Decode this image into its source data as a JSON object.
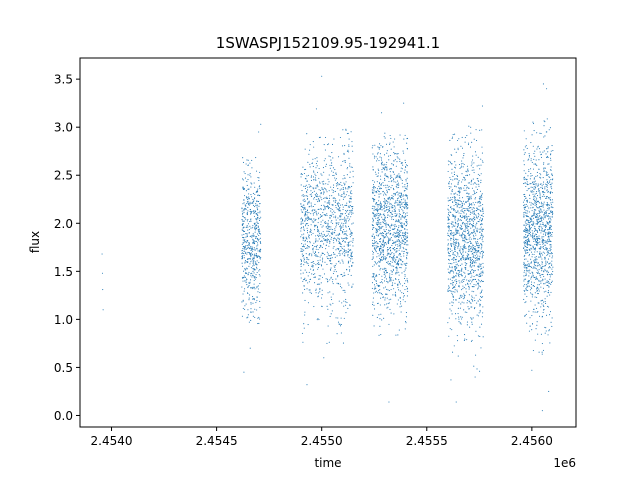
{
  "chart_data": {
    "type": "scatter",
    "title": "1SWASPJ152109.95-192941.1",
    "xlabel": "time",
    "ylabel": "flux",
    "x_offset_label": "1e6",
    "xlim": [
      2453850,
      2456210
    ],
    "ylim": [
      -0.12,
      3.72
    ],
    "x_ticks": [
      2454000,
      2454500,
      2455000,
      2455500,
      2456000
    ],
    "x_tick_labels": [
      "2.4540",
      "2.4545",
      "2.4550",
      "2.4555",
      "2.4560"
    ],
    "y_ticks": [
      0.0,
      0.5,
      1.0,
      1.5,
      2.0,
      2.5,
      3.0,
      3.5
    ],
    "y_tick_labels": [
      "0.0",
      "0.5",
      "1.0",
      "1.5",
      "2.0",
      "2.5",
      "3.0",
      "3.5"
    ],
    "grid": false,
    "marker_color": "#1f77b4",
    "series": [
      {
        "points": [
          [
            2453955,
            1.68
          ],
          [
            2453957,
            1.48
          ],
          [
            2453958,
            1.31
          ],
          [
            2453960,
            1.1
          ],
          [
            2454630,
            0.45
          ],
          [
            2454660,
            0.7
          ],
          [
            2454700,
            2.95
          ],
          [
            2454710,
            3.03
          ],
          [
            2454930,
            0.32
          ],
          [
            2454960,
            2.85
          ],
          [
            2455010,
            0.6
          ],
          [
            2455025,
            0.75
          ],
          [
            2454975,
            3.19
          ],
          [
            2455390,
            3.25
          ],
          [
            2455320,
            0.14
          ],
          [
            2455640,
            0.14
          ],
          [
            2455730,
            0.4
          ],
          [
            2455765,
            3.22
          ],
          [
            2455615,
            0.37
          ],
          [
            2456000,
            0.47
          ],
          [
            2456050,
            0.05
          ],
          [
            2456070,
            3.4
          ],
          [
            2456055,
            3.45
          ],
          [
            2456080,
            0.25
          ],
          [
            2455285,
            3.15
          ],
          [
            2455700,
            3.01
          ],
          [
            2455000,
            3.53
          ]
        ],
        "clusters": [
          {
            "x_range": [
              2454620,
              2454710
            ],
            "y_center": 1.8,
            "y_spread": 0.38,
            "y_range": [
              0.95,
              2.7
            ],
            "count": 550
          },
          {
            "x_range": [
              2454900,
              2455150
            ],
            "y_center": 1.95,
            "y_spread": 0.42,
            "y_range": [
              0.75,
              3.0
            ],
            "count": 1100
          },
          {
            "x_range": [
              2455240,
              2455410
            ],
            "y_center": 1.95,
            "y_spread": 0.42,
            "y_range": [
              0.55,
              2.95
            ],
            "count": 1200
          },
          {
            "x_range": [
              2455600,
              2455770
            ],
            "y_center": 1.85,
            "y_spread": 0.45,
            "y_range": [
              0.45,
              3.0
            ],
            "count": 1200
          },
          {
            "x_range": [
              2455960,
              2456100
            ],
            "y_center": 1.9,
            "y_spread": 0.45,
            "y_range": [
              0.45,
              3.1
            ],
            "count": 1100
          }
        ]
      }
    ]
  }
}
